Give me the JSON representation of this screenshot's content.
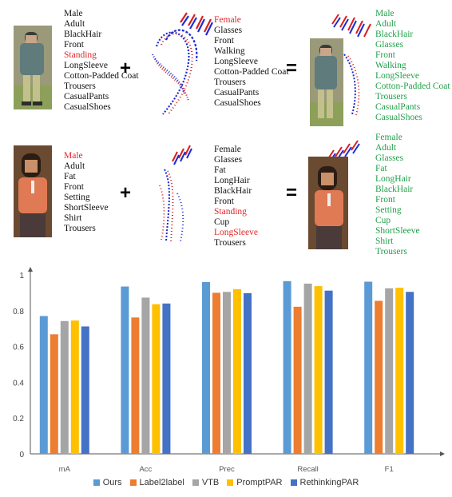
{
  "examples": [
    {
      "left_attributes": [
        {
          "text": "Male",
          "color": "#111111"
        },
        {
          "text": "Adult",
          "color": "#111111"
        },
        {
          "text": "BlackHair",
          "color": "#111111"
        },
        {
          "text": "Front",
          "color": "#111111"
        },
        {
          "text": "Standing",
          "color": "#e0262a"
        },
        {
          "text": "LongSleeve",
          "color": "#111111"
        },
        {
          "text": "Cotton-Padded Coat",
          "color": "#111111"
        },
        {
          "text": "Trousers",
          "color": "#111111"
        },
        {
          "text": "CasualPants",
          "color": "#111111"
        },
        {
          "text": "CasualShoes",
          "color": "#111111"
        }
      ],
      "middle_attributes": [
        {
          "text": "Female",
          "color": "#e0262a"
        },
        {
          "text": "Glasses",
          "color": "#111111"
        },
        {
          "text": "Front",
          "color": "#111111"
        },
        {
          "text": "Walking",
          "color": "#111111"
        },
        {
          "text": "LongSleeve",
          "color": "#111111"
        },
        {
          "text": "Cotton-Padded Coat",
          "color": "#111111"
        },
        {
          "text": "Trousers",
          "color": "#111111"
        },
        {
          "text": "CasualPants",
          "color": "#111111"
        },
        {
          "text": "CasualShoes",
          "color": "#111111"
        }
      ],
      "result_attributes": [
        {
          "text": "Male",
          "color": "#22a04a"
        },
        {
          "text": "Adult",
          "color": "#22a04a"
        },
        {
          "text": "BlackHair",
          "color": "#22a04a"
        },
        {
          "text": "Glasses",
          "color": "#22a04a"
        },
        {
          "text": "Front",
          "color": "#22a04a"
        },
        {
          "text": "Walking",
          "color": "#22a04a"
        },
        {
          "text": "LongSleeve",
          "color": "#22a04a"
        },
        {
          "text": "Cotton-Padded Coat",
          "color": "#22a04a"
        },
        {
          "text": "Trousers",
          "color": "#22a04a"
        },
        {
          "text": "CasualPants",
          "color": "#22a04a"
        },
        {
          "text": "CasualShoes",
          "color": "#22a04a"
        }
      ],
      "plus": "+",
      "equals": "="
    },
    {
      "left_attributes": [
        {
          "text": "Male",
          "color": "#e0262a"
        },
        {
          "text": "Adult",
          "color": "#111111"
        },
        {
          "text": "Fat",
          "color": "#111111"
        },
        {
          "text": "Front",
          "color": "#111111"
        },
        {
          "text": "Setting",
          "color": "#111111"
        },
        {
          "text": "ShortSleeve",
          "color": "#111111"
        },
        {
          "text": "Shirt",
          "color": "#111111"
        },
        {
          "text": "Trousers",
          "color": "#111111"
        }
      ],
      "middle_attributes": [
        {
          "text": "Female",
          "color": "#111111"
        },
        {
          "text": "Glasses",
          "color": "#111111"
        },
        {
          "text": "Fat",
          "color": "#111111"
        },
        {
          "text": "LongHair",
          "color": "#111111"
        },
        {
          "text": "BlackHair",
          "color": "#111111"
        },
        {
          "text": "Front",
          "color": "#111111"
        },
        {
          "text": "Standing",
          "color": "#e0262a"
        },
        {
          "text": "Cup",
          "color": "#111111"
        },
        {
          "text": "LongSleeve",
          "color": "#e0262a"
        },
        {
          "text": "Trousers",
          "color": "#111111"
        }
      ],
      "result_attributes": [
        {
          "text": "Female",
          "color": "#22a04a"
        },
        {
          "text": "Adult",
          "color": "#22a04a"
        },
        {
          "text": "Glasses",
          "color": "#22a04a"
        },
        {
          "text": "Fat",
          "color": "#22a04a"
        },
        {
          "text": "LongHair",
          "color": "#22a04a"
        },
        {
          "text": "BlackHair",
          "color": "#22a04a"
        },
        {
          "text": "Front",
          "color": "#22a04a"
        },
        {
          "text": "Setting",
          "color": "#22a04a"
        },
        {
          "text": "Cup",
          "color": "#22a04a"
        },
        {
          "text": "ShortSleeve",
          "color": "#22a04a"
        },
        {
          "text": "Shirt",
          "color": "#22a04a"
        },
        {
          "text": "Trousers",
          "color": "#22a04a"
        }
      ],
      "plus": "+",
      "equals": "="
    }
  ],
  "chart_data": {
    "type": "bar",
    "categories": [
      "mA",
      "Acc",
      "Prec",
      "Recall",
      "F1"
    ],
    "series": [
      {
        "name": "Ours",
        "color": "#5b9bd5",
        "values": [
          0.77,
          0.935,
          0.96,
          0.965,
          0.962
        ]
      },
      {
        "name": "Label2label",
        "color": "#ed7d31",
        "values": [
          0.668,
          0.762,
          0.9,
          0.822,
          0.855
        ]
      },
      {
        "name": "VTB",
        "color": "#a5a5a5",
        "values": [
          0.742,
          0.873,
          0.905,
          0.951,
          0.925
        ]
      },
      {
        "name": "PromptPAR",
        "color": "#ffc000",
        "values": [
          0.745,
          0.836,
          0.92,
          0.937,
          0.928
        ]
      },
      {
        "name": "RethinkingPAR",
        "color": "#4472c4",
        "values": [
          0.712,
          0.84,
          0.898,
          0.912,
          0.905
        ]
      }
    ],
    "ylim": [
      0,
      1
    ],
    "yticks": [
      "0",
      "0.2",
      "0.4",
      "0.6",
      "0.8",
      "1"
    ],
    "grid": false,
    "legend_position": "bottom"
  }
}
